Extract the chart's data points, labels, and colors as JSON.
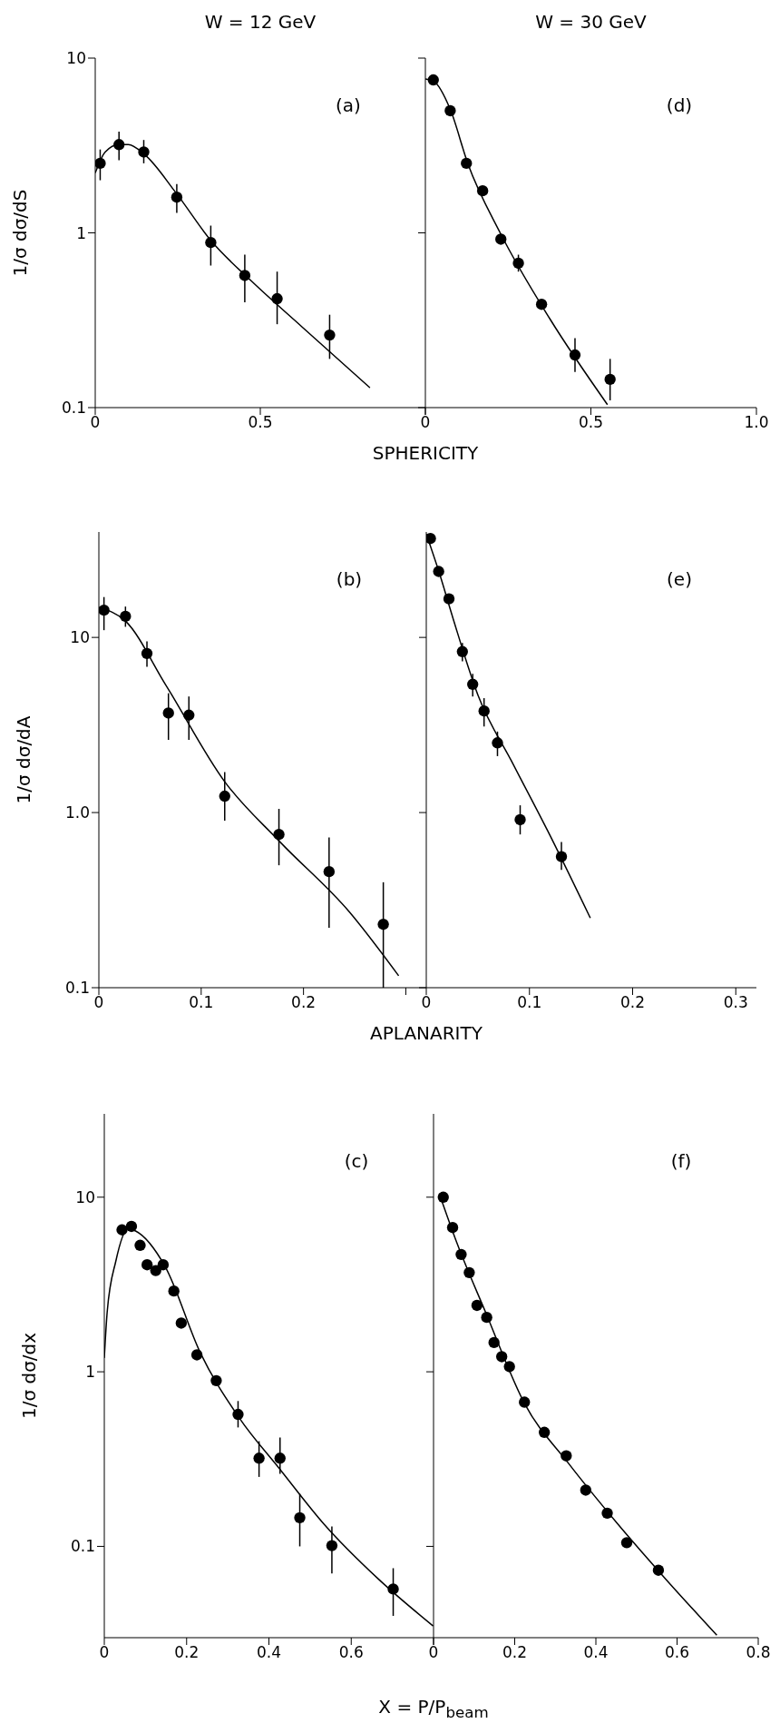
{
  "chart_data": [
    {
      "type": "scatter",
      "title": "W = 12 GeV",
      "ylabel": "1/σ dσ/dS",
      "xlabel": "SPHERICITY",
      "annotations": [
        "(a)"
      ],
      "log": true,
      "xlim": [
        0,
        1
      ],
      "xticks": [
        0,
        0.5,
        {
          "value": 1,
          "label": null
        }
      ],
      "ylim": [
        0.1,
        10
      ],
      "yticks": [
        0.1,
        1,
        10
      ],
      "series": [
        {
          "type": "scatter",
          "marker": "circle",
          "color": "#000000",
          "x": [
            0.015,
            0.072,
            0.147,
            0.247,
            0.35,
            0.453,
            0.551,
            0.71
          ],
          "values": [
            2.5,
            3.2,
            2.9,
            1.6,
            0.88,
            0.57,
            0.42,
            0.26
          ],
          "errors": [
            [
              2.0,
              3.0
            ],
            [
              2.6,
              3.8
            ],
            [
              2.5,
              3.4
            ],
            [
              1.3,
              1.9
            ],
            [
              0.65,
              1.1
            ],
            [
              0.4,
              0.75
            ],
            [
              0.3,
              0.6
            ],
            [
              0.19,
              0.34
            ]
          ]
        },
        {
          "type": "line",
          "color": "#000000",
          "x": [
            0,
            0.03,
            0.072,
            0.1,
            0.15,
            0.244,
            0.351,
            0.473,
            0.626,
            0.832
          ],
          "values": [
            2.2,
            2.9,
            3.2,
            3.2,
            2.8,
            1.7,
            0.9,
            0.53,
            0.29,
            0.13
          ]
        }
      ]
    },
    {
      "type": "scatter",
      "title": "W = 30 GeV",
      "annotations": [
        "(d)"
      ],
      "log": true,
      "tick_labels": "x",
      "xlim": [
        0,
        1
      ],
      "xticks": [
        0,
        0.5,
        {
          "value": 1,
          "label": "1.0"
        }
      ],
      "ylim": [
        0.1,
        10
      ],
      "yticks": [
        0.1,
        1,
        10
      ],
      "series": [
        {
          "type": "scatter",
          "marker": "circle",
          "color": "#000000",
          "x": [
            0.024,
            0.075,
            0.124,
            0.173,
            0.228,
            0.281,
            0.351,
            0.452,
            0.558
          ],
          "values": [
            7.5,
            5.0,
            2.5,
            1.74,
            0.92,
            0.67,
            0.39,
            0.2,
            0.145
          ],
          "errors": [
            null,
            null,
            null,
            null,
            null,
            [
              0.6,
              0.75
            ],
            null,
            [
              0.16,
              0.25
            ],
            [
              0.11,
              0.19
            ]
          ]
        },
        {
          "type": "line",
          "color": "#000000",
          "x": [
            0,
            0.024,
            0.075,
            0.128,
            0.226,
            0.377,
            0.55
          ],
          "values": [
            7.6,
            7.4,
            5.1,
            2.5,
            1.0,
            0.32,
            0.104
          ]
        }
      ]
    },
    {
      "type": "scatter",
      "ylabel": "1/σ dσ/dA",
      "xlabel": "APLANARITY",
      "annotations": [
        "(b)"
      ],
      "log": true,
      "xlim": [
        0,
        0.32
      ],
      "xticks": [
        0,
        0.1,
        0.2,
        {
          "value": 0.3,
          "label": null
        }
      ],
      "ylim": [
        0.1,
        40
      ],
      "yticks": [
        0.1,
        {
          "value": 1,
          "label": "1.0"
        },
        10
      ],
      "series": [
        {
          "type": "scatter",
          "marker": "circle",
          "color": "#000000",
          "x": [
            0.005,
            0.026,
            0.047,
            0.068,
            0.088,
            0.123,
            0.176,
            0.225,
            0.278
          ],
          "values": [
            14.3,
            13.2,
            8.1,
            3.7,
            3.6,
            1.24,
            0.75,
            0.46,
            0.23
          ],
          "errors": [
            [
              11,
              17
            ],
            [
              11.5,
              15
            ],
            [
              6.8,
              9.5
            ],
            [
              2.6,
              4.8
            ],
            [
              2.6,
              4.6
            ],
            [
              0.9,
              1.7
            ],
            [
              0.5,
              1.05
            ],
            [
              0.22,
              0.72
            ],
            [
              0.1,
              0.4
            ]
          ]
        },
        {
          "type": "line",
          "color": "#000000",
          "x": [
            0,
            0.026,
            0.065,
            0.123,
            0.177,
            0.245,
            0.293
          ],
          "values": [
            14.8,
            12.4,
            5.4,
            1.5,
            0.68,
            0.27,
            0.117
          ]
        }
      ]
    },
    {
      "type": "scatter",
      "annotations": [
        "(e)"
      ],
      "log": true,
      "tick_labels": "x",
      "xlim": [
        0,
        0.32
      ],
      "xticks": [
        0,
        0.1,
        0.2,
        0.3
      ],
      "ylim": [
        0.1,
        40
      ],
      "yticks": [
        0.1,
        1,
        10
      ],
      "series": [
        {
          "type": "scatter",
          "marker": "circle",
          "color": "#000000",
          "x": [
            0.004,
            0.012,
            0.022,
            0.035,
            0.045,
            0.056,
            0.069,
            0.091,
            0.131
          ],
          "values": [
            36.7,
            23.8,
            16.6,
            8.3,
            5.4,
            3.8,
            2.5,
            0.91,
            0.56
          ],
          "errors": [
            null,
            null,
            null,
            [
              7.3,
              9.3
            ],
            [
              4.6,
              6.2
            ],
            [
              3.1,
              4.5
            ],
            [
              2.1,
              2.9
            ],
            [
              0.75,
              1.1
            ],
            [
              0.47,
              0.68
            ]
          ]
        },
        {
          "type": "line",
          "color": "#000000",
          "x": [
            0,
            0.012,
            0.026,
            0.05,
            0.084,
            0.118,
            0.159
          ],
          "values": [
            39,
            24,
            12.8,
            4.7,
            1.9,
            0.78,
            0.25
          ]
        }
      ]
    },
    {
      "type": "scatter",
      "ylabel": "1/σ dσ/dx",
      "xlabel": "X = P/P$_{beam}$",
      "annotations": [
        "(c)"
      ],
      "log": true,
      "xlim": [
        0,
        0.8
      ],
      "xticks": [
        0,
        0.2,
        0.4,
        0.6,
        {
          "value": 0.8,
          "label": null
        }
      ],
      "ylim": [
        0.03,
        30
      ],
      "yticks": [
        0.1,
        1,
        10
      ],
      "series": [
        {
          "type": "scatter",
          "marker": "circle",
          "color": "#000000",
          "x": [
            0.043,
            0.066,
            0.087,
            0.104,
            0.125,
            0.143,
            0.169,
            0.187,
            0.225,
            0.272,
            0.325,
            0.376,
            0.427,
            0.475,
            0.553,
            0.702
          ],
          "values": [
            6.5,
            6.8,
            5.3,
            4.1,
            3.8,
            4.1,
            2.9,
            1.9,
            1.25,
            0.89,
            0.57,
            0.32,
            0.32,
            0.146,
            0.101,
            0.057
          ],
          "errors": [
            null,
            null,
            null,
            null,
            null,
            null,
            null,
            null,
            null,
            null,
            [
              0.48,
              0.68
            ],
            [
              0.25,
              0.4
            ],
            [
              0.26,
              0.42
            ],
            [
              0.1,
              0.2
            ],
            [
              0.07,
              0.13
            ],
            [
              0.04,
              0.075
            ]
          ]
        },
        {
          "type": "line",
          "color": "#000000",
          "x": [
            0,
            0.007,
            0.028,
            0.058,
            0.076,
            0.148,
            0.233,
            0.329,
            0.425,
            0.534,
            0.666,
            0.799
          ],
          "values": [
            1.2,
            2.2,
            4.3,
            6.6,
            6.4,
            4.0,
            1.29,
            0.54,
            0.28,
            0.134,
            0.065,
            0.035
          ]
        }
      ]
    },
    {
      "type": "scatter",
      "annotations": [
        "(f)"
      ],
      "log": true,
      "tick_labels": "x",
      "xlim": [
        0,
        0.8
      ],
      "xticks": [
        0,
        0.2,
        0.4,
        0.6,
        0.8
      ],
      "ylim": [
        0.03,
        30
      ],
      "yticks": [
        0.1,
        1,
        10
      ],
      "series": [
        {
          "type": "scatter",
          "marker": "circle",
          "color": "#000000",
          "x": [
            0.024,
            0.047,
            0.068,
            0.088,
            0.107,
            0.131,
            0.149,
            0.168,
            0.187,
            0.224,
            0.273,
            0.327,
            0.375,
            0.428,
            0.476,
            0.554
          ],
          "values": [
            10.0,
            6.7,
            4.7,
            3.7,
            2.4,
            2.05,
            1.47,
            1.22,
            1.07,
            0.67,
            0.45,
            0.33,
            0.21,
            0.155,
            0.105,
            0.073
          ]
        },
        {
          "type": "line",
          "color": "#000000",
          "x": [
            0.014,
            0.056,
            0.128,
            0.224,
            0.332,
            0.452,
            0.572,
            0.698
          ],
          "values": [
            10.5,
            5.6,
            2.2,
            0.66,
            0.3,
            0.136,
            0.065,
            0.031
          ]
        }
      ]
    }
  ]
}
